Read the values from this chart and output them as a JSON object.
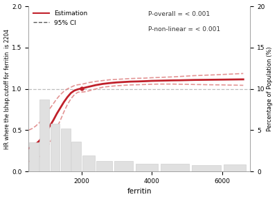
{
  "xlim": [
    500,
    6800
  ],
  "ylim_left": [
    0.0,
    2.0
  ],
  "ylim_right": [
    0,
    20
  ],
  "xlabel": "ferritin",
  "ylabel_left": "HR where the lshap.cutoff for ferritin  is 2204",
  "ylabel_right": "Percentage of Population (%)",
  "yticks_left": [
    0.0,
    0.5,
    1.0,
    1.5,
    2.0
  ],
  "yticks_right": [
    0,
    5,
    10,
    15,
    20
  ],
  "xticks": [
    2000,
    4000,
    6000
  ],
  "ref_line_y": 1.0,
  "p_overall": "P-overall = < 0.001",
  "p_nonlinear": "P-non-linear = < 0.001",
  "legend_estimation": "Estimation",
  "legend_ci": "95% CI",
  "line_color": "#c0202a",
  "ci_color": "#e08888",
  "hist_color": "#e0e0e0",
  "hist_edgecolor": "#c8c8c8",
  "ref_line_color": "#b0b0b0",
  "background_color": "#ffffff",
  "hist_bins_x": [
    500,
    800,
    1100,
    1400,
    1700,
    2000,
    2400,
    2900,
    3500,
    4200,
    5100,
    6000,
    6700
  ],
  "hist_bins_heights_pct": [
    3.5,
    8.7,
    5.8,
    5.2,
    3.6,
    1.9,
    1.3,
    1.3,
    0.9,
    0.9,
    0.8,
    0.85
  ],
  "estimation_x": [
    500,
    600,
    700,
    800,
    900,
    1000,
    1100,
    1200,
    1300,
    1400,
    1500,
    1600,
    1700,
    1800,
    1900,
    2000,
    2100,
    2200,
    2400,
    2600,
    2800,
    3000,
    3200,
    3400,
    3600,
    3800,
    4000,
    4200,
    4400,
    4600,
    4800,
    5000,
    5200,
    5400,
    5600,
    5800,
    6000,
    6200,
    6400,
    6600
  ],
  "estimation_y": [
    0.28,
    0.3,
    0.33,
    0.37,
    0.42,
    0.48,
    0.55,
    0.62,
    0.7,
    0.77,
    0.84,
    0.9,
    0.95,
    0.98,
    0.995,
    1.005,
    1.015,
    1.025,
    1.045,
    1.06,
    1.07,
    1.078,
    1.083,
    1.088,
    1.09,
    1.093,
    1.097,
    1.099,
    1.101,
    1.103,
    1.104,
    1.106,
    1.108,
    1.109,
    1.11,
    1.111,
    1.112,
    1.113,
    1.114,
    1.115
  ],
  "ci_upper_y": [
    0.5,
    0.52,
    0.55,
    0.59,
    0.64,
    0.7,
    0.76,
    0.82,
    0.88,
    0.93,
    0.97,
    1.0,
    1.02,
    1.04,
    1.05,
    1.055,
    1.065,
    1.075,
    1.09,
    1.1,
    1.11,
    1.115,
    1.12,
    1.125,
    1.128,
    1.13,
    1.135,
    1.138,
    1.142,
    1.145,
    1.15,
    1.155,
    1.16,
    1.163,
    1.167,
    1.17,
    1.174,
    1.178,
    1.182,
    1.186
  ],
  "ci_lower_y": [
    0.12,
    0.13,
    0.15,
    0.17,
    0.21,
    0.27,
    0.35,
    0.43,
    0.53,
    0.62,
    0.72,
    0.81,
    0.88,
    0.93,
    0.96,
    0.96,
    0.965,
    0.975,
    0.998,
    1.02,
    1.03,
    1.038,
    1.043,
    1.048,
    1.05,
    1.053,
    1.056,
    1.058,
    1.058,
    1.058,
    1.056,
    1.055,
    1.053,
    1.052,
    1.05,
    1.049,
    1.048,
    1.046,
    1.045,
    1.043
  ]
}
